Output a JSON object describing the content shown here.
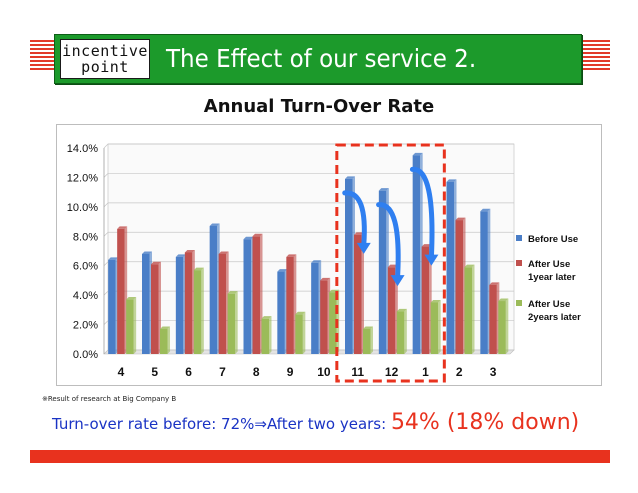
{
  "logo": {
    "line1": "incentive",
    "line2": "point"
  },
  "banner": {
    "title": "The Effect of our service 2."
  },
  "footnote": "※Result of research at Big Company B",
  "summary": {
    "lead": "Turn-over rate before: 72%⇒After two years: ",
    "highlight": "54% (18% down)"
  },
  "colors": {
    "banner_green": "#1c9a2b",
    "accent_red": "#e8321e",
    "summary_blue": "#1a33c4",
    "series_before": "#4a7ec7",
    "series_1year": "#c0504d",
    "series_2years": "#9bbb59",
    "arrow_blue": "#2f7ff0"
  },
  "chart_data": {
    "type": "bar",
    "title": "Annual Turn-Over Rate",
    "categories": [
      "4",
      "5",
      "6",
      "7",
      "8",
      "9",
      "10",
      "11",
      "12",
      "1",
      "2",
      "3"
    ],
    "series": [
      {
        "name": "Before Use",
        "values": [
          6.4,
          6.8,
          6.6,
          8.7,
          7.8,
          5.6,
          6.2,
          11.9,
          11.1,
          13.5,
          11.7,
          9.7
        ]
      },
      {
        "name": "After Use 1year later",
        "values": [
          8.5,
          6.1,
          6.9,
          6.8,
          8.0,
          6.6,
          5.0,
          8.1,
          5.9,
          7.3,
          9.1,
          4.7
        ]
      },
      {
        "name": "After Use 2years later",
        "values": [
          3.7,
          1.7,
          5.7,
          4.1,
          2.4,
          2.7,
          4.2,
          1.7,
          2.9,
          3.5,
          5.9,
          3.6
        ]
      }
    ],
    "ylim": [
      0,
      14
    ],
    "yticks": [
      "0.0%",
      "2.0%",
      "4.0%",
      "6.0%",
      "8.0%",
      "10.0%",
      "12.0%",
      "14.0%"
    ],
    "grid": true,
    "legend": "right",
    "legend_lines": [
      [
        "Before Use"
      ],
      [
        "After Use",
        "1year later"
      ],
      [
        "After Use",
        "2years later"
      ]
    ],
    "highlighted_categories": [
      "11",
      "12",
      "1"
    ]
  }
}
